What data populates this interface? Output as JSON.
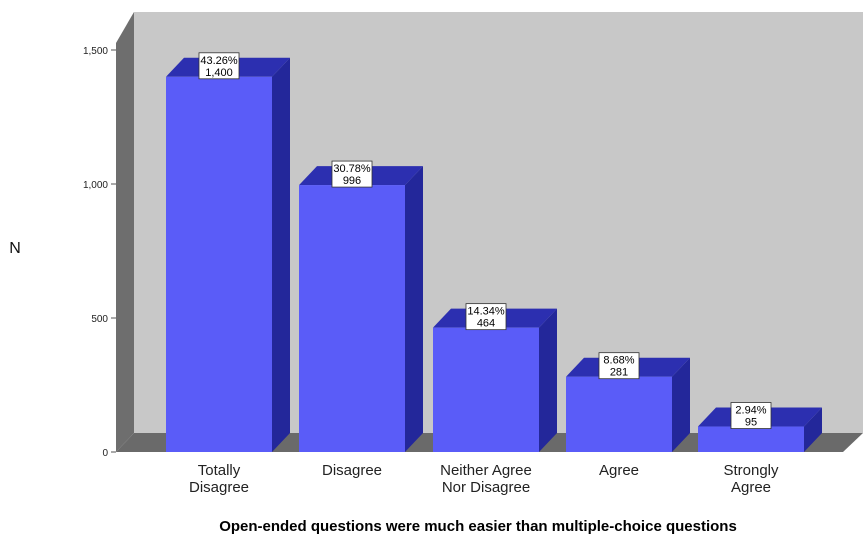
{
  "chart_data": {
    "type": "bar",
    "xlabel": "Open-ended questions were much easier than multiple-choice questions",
    "ylabel": "N",
    "categories": [
      [
        "Totally",
        "Disagree"
      ],
      [
        "Disagree"
      ],
      [
        "Neither Agree",
        "Nor Disagree"
      ],
      [
        "Agree"
      ],
      [
        "Strongly",
        "Agree"
      ]
    ],
    "values": [
      1400,
      996,
      464,
      281,
      95
    ],
    "percent_labels": [
      "43.26%",
      "30.78%",
      "14.34%",
      "8.68%",
      "2.94%"
    ],
    "value_labels": [
      "1,400",
      "996",
      "464",
      "281",
      "95"
    ],
    "yticks": [
      {
        "value": 0,
        "label": "0"
      },
      {
        "value": 500,
        "label": "500"
      },
      {
        "value": 1000,
        "label": "1,000"
      },
      {
        "value": 1500,
        "label": "1,500"
      }
    ],
    "ylim": [
      0,
      1500
    ],
    "grid": false,
    "legend": "none",
    "colors": {
      "bar_front": "#5a5cf8",
      "bar_side": "#23279a",
      "bar_top": "#2c2fb0",
      "plot_back": "#c8c8c8",
      "side_wall": "#6e6e6e",
      "floor": "#6a6a6a"
    }
  }
}
